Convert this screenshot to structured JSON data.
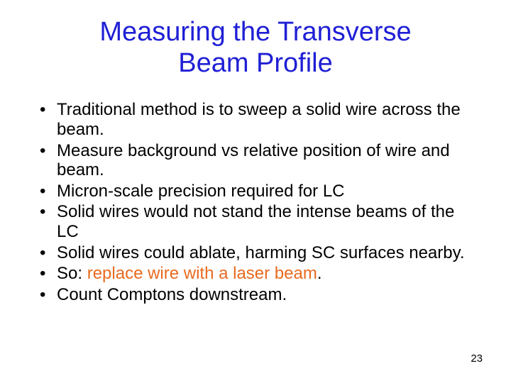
{
  "slide": {
    "title_line1": "Measuring the Transverse",
    "title_line2": "Beam Profile",
    "title_color": "#1f1fd6",
    "bullets": [
      {
        "text": "Traditional method is to sweep a solid wire across the beam."
      },
      {
        "text": "Measure background vs relative position of wire and beam."
      },
      {
        "text": "Micron-scale precision required for LC"
      },
      {
        "text": "Solid wires would not stand the intense beams of the LC"
      },
      {
        "text": "Solid wires could ablate, harming SC surfaces nearby."
      },
      {
        "prefix": "So: ",
        "highlight": "replace wire with a laser beam",
        "suffix": "."
      },
      {
        "text": "Count Comptons downstream."
      }
    ],
    "highlight_color": "#e86a1f",
    "body_fontsize": 24,
    "title_fontsize": 38,
    "page_number": "23",
    "background_color": "#ffffff",
    "text_color": "#000000"
  }
}
